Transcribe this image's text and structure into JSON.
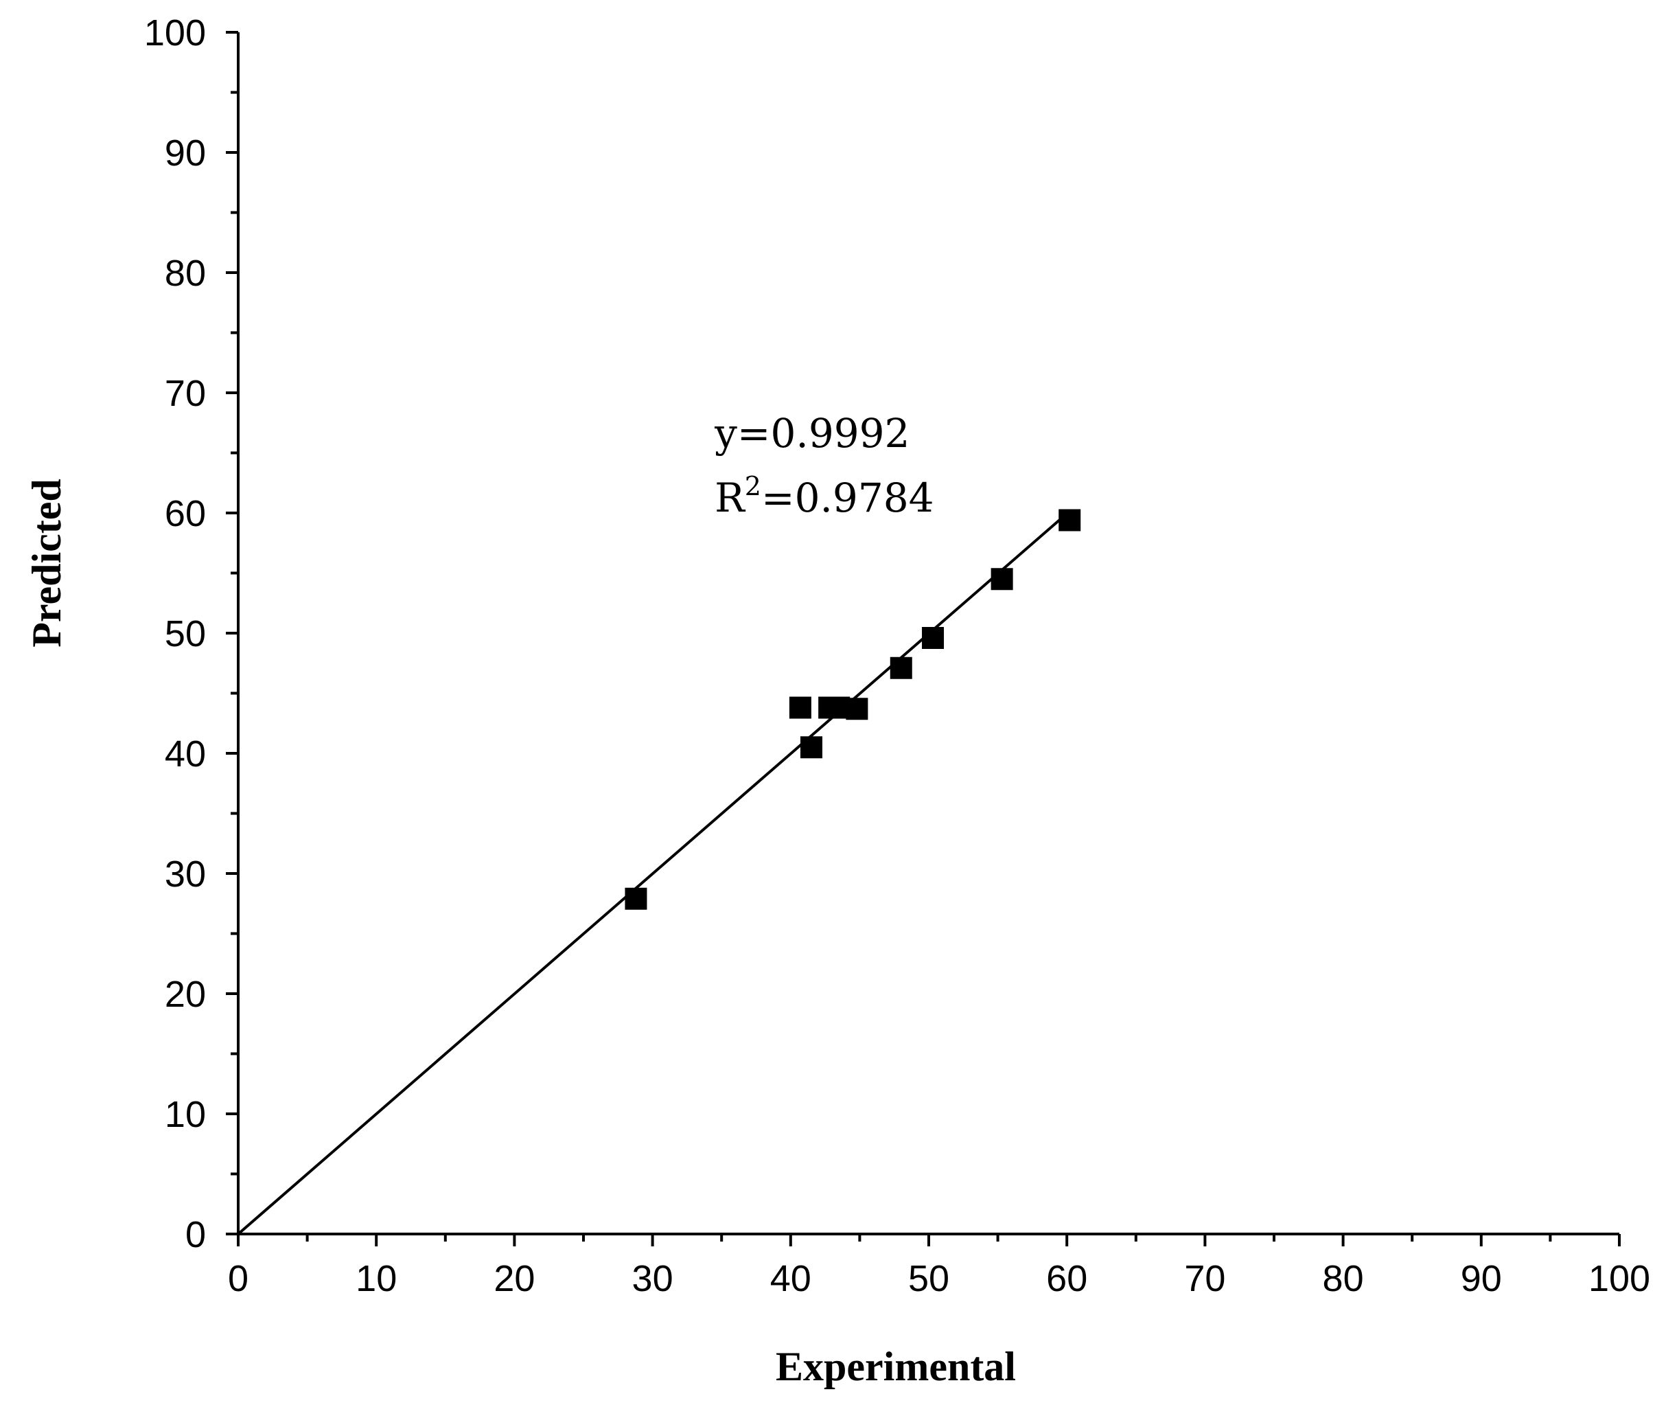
{
  "chart_data": {
    "type": "scatter",
    "title": "",
    "xlabel": "Experimental",
    "ylabel": "Predicted",
    "xlim": [
      0,
      100
    ],
    "ylim": [
      0,
      100
    ],
    "x_ticks": [
      0,
      10,
      20,
      30,
      40,
      50,
      60,
      70,
      80,
      90,
      100
    ],
    "y_ticks": [
      0,
      10,
      20,
      30,
      40,
      50,
      60,
      70,
      80,
      90,
      100
    ],
    "grid": false,
    "marker": "square",
    "color": "#000000",
    "series": [
      {
        "name": "data",
        "points": [
          {
            "x": 28.8,
            "y": 27.9
          },
          {
            "x": 40.7,
            "y": 43.8
          },
          {
            "x": 41.5,
            "y": 40.5
          },
          {
            "x": 42.8,
            "y": 43.8
          },
          {
            "x": 43.5,
            "y": 43.8
          },
          {
            "x": 44.8,
            "y": 43.7
          },
          {
            "x": 48.0,
            "y": 47.1
          },
          {
            "x": 50.3,
            "y": 49.6
          },
          {
            "x": 55.3,
            "y": 54.5
          },
          {
            "x": 60.2,
            "y": 59.4
          }
        ]
      }
    ],
    "fit_line": {
      "x": [
        0,
        60.2
      ],
      "y": [
        0,
        60.15
      ]
    },
    "annotations": {
      "equation": "y=0.9992",
      "r2_prefix": "R",
      "r2_sup": "2",
      "r2_value": "=0.9784",
      "anchor": {
        "x": 34.5,
        "y": 65.5
      }
    }
  }
}
